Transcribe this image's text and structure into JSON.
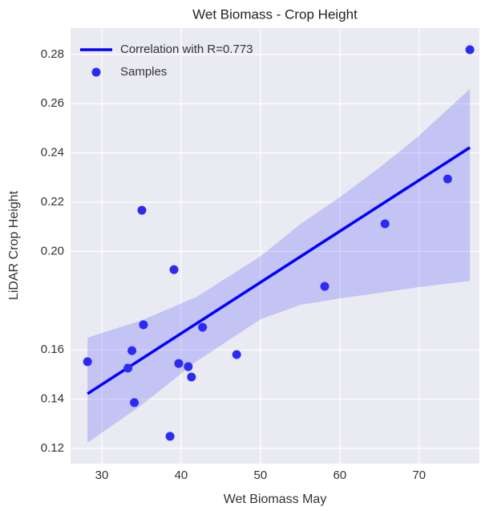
{
  "chart_data": {
    "type": "scatter",
    "title": "Wet Biomass - Crop Height",
    "x_label": "Wet Biomass May",
    "y_label": "LiDAR Crop Height",
    "xlim": [
      26.06,
      77.6
    ],
    "ylim": [
      0.1138,
      0.2907
    ],
    "xticks": [
      30,
      40,
      50,
      60,
      70
    ],
    "yticks": [
      0.12,
      0.14,
      0.16,
      {
        "value": 0.2,
        "label": "0.20"
      },
      0.22,
      0.24,
      0.26,
      0.28
    ],
    "grid": true,
    "legend": "upper left",
    "band": {
      "color": "rgba(40,40,255,0.2)",
      "x": [
        28.2,
        35,
        42,
        50,
        55,
        60,
        65,
        70,
        76.4
      ],
      "upper": [
        0.165,
        0.172,
        0.1816,
        0.198,
        0.211,
        0.222,
        0.234,
        0.247,
        0.266
      ],
      "lower": [
        0.1223,
        0.1376,
        0.1555,
        0.1724,
        0.1783,
        0.1809,
        0.1832,
        0.1855,
        0.188
      ]
    },
    "series": [
      {
        "name": "Correlation with R=0.773",
        "type": "line",
        "color": "#0000ff",
        "x": [
          28.2,
          76.4
        ],
        "values": [
          0.1422,
          0.2422
        ]
      },
      {
        "name": "Samples",
        "type": "scatter",
        "color": "#2b2bf5",
        "x": [
          28.2,
          33.8,
          33.3,
          34.1,
          35.05,
          35.25,
          39.1,
          38.6,
          39.7,
          40.9,
          41.3,
          42.7,
          47.0,
          58.1,
          65.7,
          73.6,
          76.4
        ],
        "values": [
          0.1552,
          0.1597,
          0.1526,
          0.1386,
          0.2167,
          0.1702,
          0.1926,
          0.1249,
          0.1545,
          0.1532,
          0.149,
          0.1692,
          0.1581,
          0.1858,
          0.2112,
          0.2294,
          0.2819
        ]
      }
    ]
  }
}
